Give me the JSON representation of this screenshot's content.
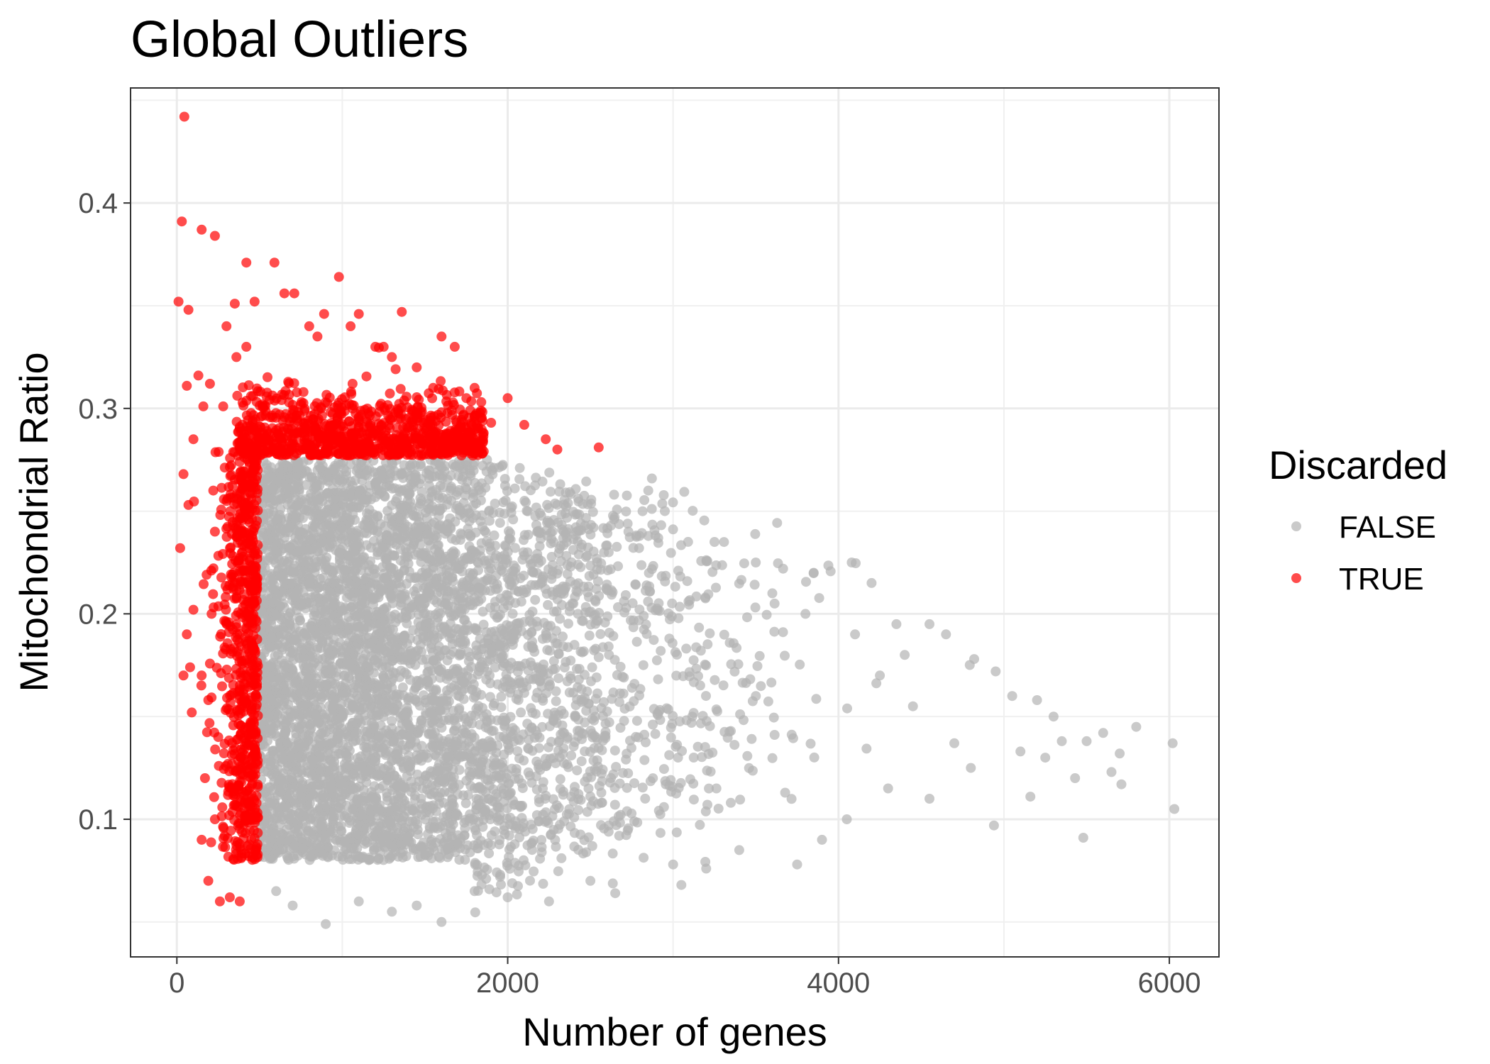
{
  "chart_data": {
    "type": "scatter",
    "title": "Global Outliers",
    "xlabel": "Number of genes",
    "ylabel": "Mitochondrial Ratio",
    "xlim": [
      -280,
      6300
    ],
    "ylim": [
      0.033,
      0.456
    ],
    "x_ticks": [
      0,
      2000,
      4000,
      6000
    ],
    "x_tick_labels": [
      "0",
      "2000",
      "4000",
      "6000"
    ],
    "y_ticks": [
      0.1,
      0.2,
      0.3,
      0.4
    ],
    "y_tick_labels": [
      "0.1",
      "0.2",
      "0.3",
      "0.4"
    ],
    "grid": true,
    "legend": {
      "title": "Discarded",
      "placement": "right",
      "entries": [
        {
          "label": "FALSE",
          "color": "#b3b3b3"
        },
        {
          "label": "TRUE",
          "color": "#ff0000"
        }
      ]
    },
    "series": [
      {
        "name": "FALSE",
        "color": "#b3b3b3",
        "density_bounds": {
          "x_min": 500,
          "mito_max": 0.275,
          "mito_min": 0.08,
          "core_x_max": 1800
        },
        "points": [
          [
            2730,
            0.24
          ],
          [
            2850,
            0.26
          ],
          [
            3250,
            0.235
          ],
          [
            3500,
            0.225
          ],
          [
            3850,
            0.22
          ],
          [
            4080,
            0.225
          ],
          [
            4200,
            0.215
          ],
          [
            4350,
            0.195
          ],
          [
            4550,
            0.195
          ],
          [
            4650,
            0.19
          ],
          [
            4820,
            0.178
          ],
          [
            4950,
            0.172
          ],
          [
            5050,
            0.16
          ],
          [
            5200,
            0.158
          ],
          [
            5300,
            0.15
          ],
          [
            5350,
            0.138
          ],
          [
            5500,
            0.138
          ],
          [
            5600,
            0.142
          ],
          [
            5700,
            0.132
          ],
          [
            5800,
            0.145
          ],
          [
            6020,
            0.137
          ],
          [
            6030,
            0.105
          ],
          [
            5480,
            0.091
          ],
          [
            5160,
            0.111
          ],
          [
            4940,
            0.097
          ],
          [
            4550,
            0.11
          ],
          [
            4300,
            0.115
          ],
          [
            3900,
            0.09
          ],
          [
            3400,
            0.085
          ],
          [
            3000,
            0.078
          ],
          [
            2500,
            0.07
          ],
          [
            2000,
            0.062
          ],
          [
            1600,
            0.05
          ],
          [
            1300,
            0.055
          ],
          [
            900,
            0.049
          ],
          [
            700,
            0.058
          ],
          [
            600,
            0.065
          ],
          [
            1100,
            0.06
          ],
          [
            1800,
            0.065
          ],
          [
            2250,
            0.06
          ],
          [
            5710,
            0.117
          ],
          [
            5430,
            0.12
          ],
          [
            5100,
            0.133
          ],
          [
            4700,
            0.137
          ],
          [
            4450,
            0.155
          ],
          [
            3050,
            0.068
          ],
          [
            3200,
            0.076
          ],
          [
            2650,
            0.064
          ],
          [
            1450,
            0.058
          ],
          [
            3750,
            0.078
          ],
          [
            4050,
            0.1
          ],
          [
            4800,
            0.125
          ],
          [
            5250,
            0.13
          ],
          [
            5650,
            0.123
          ],
          [
            3800,
            0.2
          ],
          [
            4100,
            0.19
          ],
          [
            4400,
            0.18
          ],
          [
            4250,
            0.17
          ],
          [
            3600,
            0.21
          ],
          [
            2950,
            0.25
          ]
        ]
      },
      {
        "name": "TRUE",
        "color": "#ff0000",
        "points": [
          [
            45,
            0.442
          ],
          [
            30,
            0.391
          ],
          [
            150,
            0.387
          ],
          [
            230,
            0.384
          ],
          [
            10,
            0.352
          ],
          [
            70,
            0.348
          ],
          [
            420,
            0.371
          ],
          [
            590,
            0.371
          ],
          [
            980,
            0.364
          ],
          [
            650,
            0.356
          ],
          [
            710,
            0.356
          ],
          [
            350,
            0.351
          ],
          [
            470,
            0.352
          ],
          [
            890,
            0.346
          ],
          [
            1360,
            0.347
          ],
          [
            1100,
            0.346
          ],
          [
            1680,
            0.33
          ],
          [
            2000,
            0.305
          ],
          [
            2230,
            0.285
          ],
          [
            2550,
            0.281
          ],
          [
            2100,
            0.292
          ],
          [
            1900,
            0.293
          ],
          [
            130,
            0.316
          ],
          [
            60,
            0.311
          ],
          [
            200,
            0.312
          ],
          [
            160,
            0.301
          ],
          [
            280,
            0.301
          ],
          [
            100,
            0.285
          ],
          [
            40,
            0.268
          ],
          [
            70,
            0.253
          ],
          [
            20,
            0.232
          ],
          [
            180,
            0.219
          ],
          [
            100,
            0.202
          ],
          [
            60,
            0.19
          ],
          [
            80,
            0.174
          ],
          [
            40,
            0.17
          ],
          [
            150,
            0.17
          ],
          [
            90,
            0.152
          ],
          [
            190,
            0.158
          ],
          [
            170,
            0.12
          ],
          [
            150,
            0.09
          ],
          [
            190,
            0.07
          ],
          [
            260,
            0.06
          ],
          [
            320,
            0.062
          ],
          [
            380,
            0.06
          ],
          [
            1800,
            0.31
          ],
          [
            1750,
            0.305
          ],
          [
            1450,
            0.32
          ],
          [
            1550,
            0.31
          ],
          [
            1250,
            0.33
          ],
          [
            800,
            0.34
          ],
          [
            850,
            0.335
          ],
          [
            300,
            0.34
          ],
          [
            360,
            0.325
          ],
          [
            420,
            0.33
          ],
          [
            1050,
            0.34
          ],
          [
            1200,
            0.33
          ],
          [
            220,
            0.26
          ],
          [
            230,
            0.24
          ],
          [
            210,
            0.2
          ],
          [
            250,
            0.14
          ],
          [
            230,
            0.1
          ],
          [
            2300,
            0.28
          ],
          [
            1600,
            0.335
          ],
          [
            1300,
            0.325
          ]
        ]
      }
    ]
  }
}
